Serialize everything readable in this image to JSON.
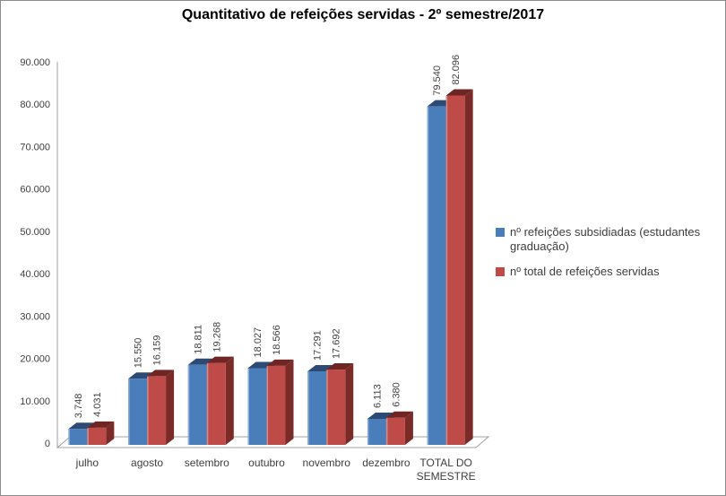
{
  "window": {
    "background": "#ffffff",
    "border_color": "#8c8c8c"
  },
  "chart_data": {
    "type": "bar",
    "style": "3d-clustered-column",
    "title": "Quantitativo de refeições servidas - 2º semestre/2017",
    "categories": [
      "julho",
      "agosto",
      "setembro",
      "outubro",
      "novembro",
      "dezembro",
      "TOTAL DO SEMESTRE"
    ],
    "series": [
      {
        "name": "nº refeições subsidiadas (estudantes graduação)",
        "values": [
          3748,
          15550,
          18811,
          18027,
          17291,
          6113,
          79540
        ],
        "labels": [
          "3.748",
          "15.550",
          "18.811",
          "18.027",
          "17.291",
          "6.113",
          "79.540"
        ],
        "color": {
          "front": "#4a7ebb",
          "top": "#2c4a73",
          "side": "#35598a",
          "highlight": "#8aaed6"
        }
      },
      {
        "name": "nº total de refeições servidas",
        "values": [
          4031,
          16159,
          19268,
          18566,
          17692,
          6380,
          82096
        ],
        "labels": [
          "4.031",
          "16.159",
          "19.268",
          "18.566",
          "17.692",
          "6.380",
          "82.096"
        ],
        "color": {
          "front": "#be4b48",
          "top": "#6f2523",
          "side": "#7a2b28",
          "highlight": "#d48f8d"
        }
      }
    ],
    "y_axis": {
      "min": 0,
      "max": 90000,
      "step": 10000,
      "tick_values": [
        0,
        10000,
        20000,
        30000,
        40000,
        50000,
        60000,
        70000,
        80000,
        90000
      ],
      "tick_labels": [
        "0",
        "10.000",
        "20.000",
        "30.000",
        "40.000",
        "50.000",
        "60.000",
        "70.000",
        "80.000",
        "90.000"
      ]
    },
    "gridlines": false,
    "legend_position": "right",
    "data_labels": {
      "rotation": -90,
      "format": "thousands-dot",
      "color": "#404040"
    },
    "axis_color": "#a0a0a0",
    "tick_label_color": "#3d3d3d"
  }
}
